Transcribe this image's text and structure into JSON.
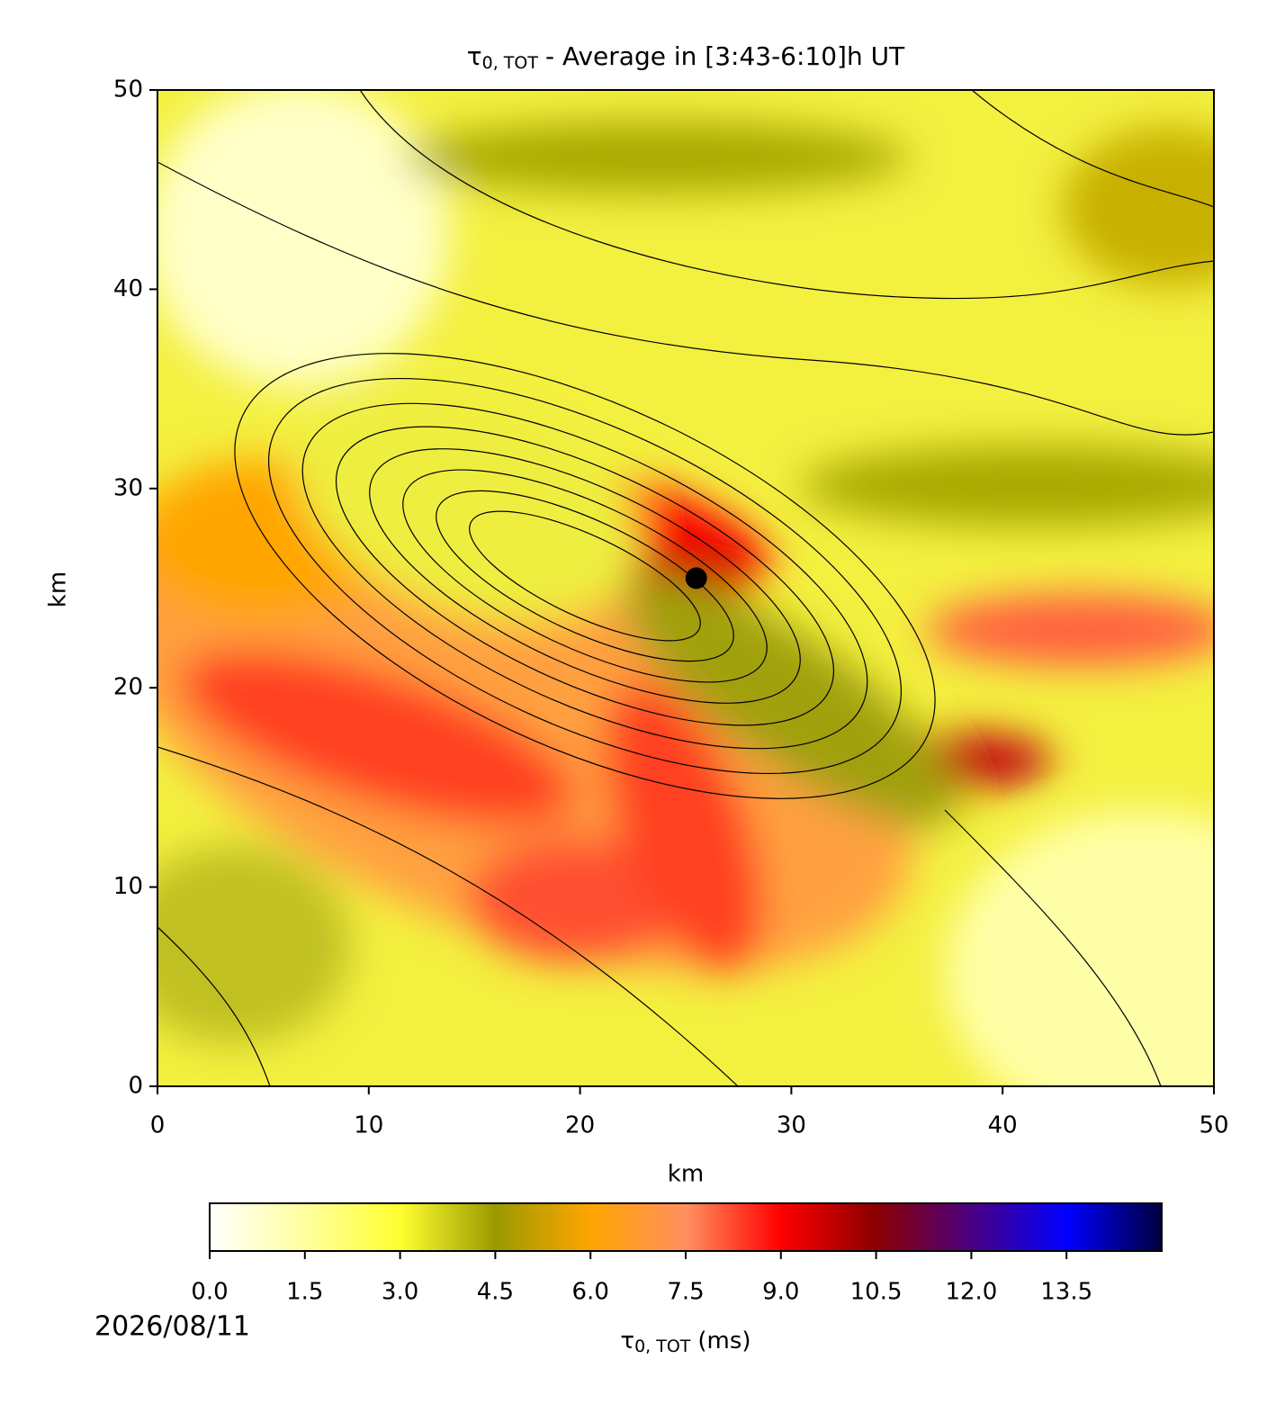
{
  "chart_data": {
    "type": "contour",
    "title_symbol": "τ",
    "title_subscript": "0, TOT",
    "title_text": "- Average in [3:43-6:10]h UT",
    "xlabel": "km",
    "ylabel": "km",
    "xlim": [
      0,
      50
    ],
    "ylim": [
      0,
      50
    ],
    "xticks": [
      0,
      10,
      20,
      30,
      40,
      50
    ],
    "yticks": [
      0,
      10,
      20,
      30,
      40,
      50
    ],
    "marker": {
      "x": 25.5,
      "y": 25.5,
      "color": "#000000"
    },
    "colorbar": {
      "lim": [
        0,
        15
      ],
      "ticks": [
        {
          "value": 0,
          "label": "0.0"
        },
        {
          "value": 1.5,
          "label": "1.5"
        },
        {
          "value": 3,
          "label": "3.0"
        },
        {
          "value": 4.5,
          "label": "4.5"
        },
        {
          "value": 6,
          "label": "6.0"
        },
        {
          "value": 7.5,
          "label": "7.5"
        },
        {
          "value": 9,
          "label": "9.0"
        },
        {
          "value": 10.5,
          "label": "10.5"
        },
        {
          "value": 12,
          "label": "12.0"
        },
        {
          "value": 13.5,
          "label": "13.5"
        }
      ],
      "label_symbol": "τ",
      "label_subscript": "0, TOT",
      "label_unit": "(ms)",
      "colors": [
        "#ffffff",
        "#ffffa0",
        "#ffff30",
        "#9a9a00",
        "#ffa500",
        "#ff9060",
        "#ff0000",
        "#8b0000",
        "#4b0082",
        "#0000ff",
        "#000040"
      ]
    },
    "date": "2026/08/11"
  }
}
